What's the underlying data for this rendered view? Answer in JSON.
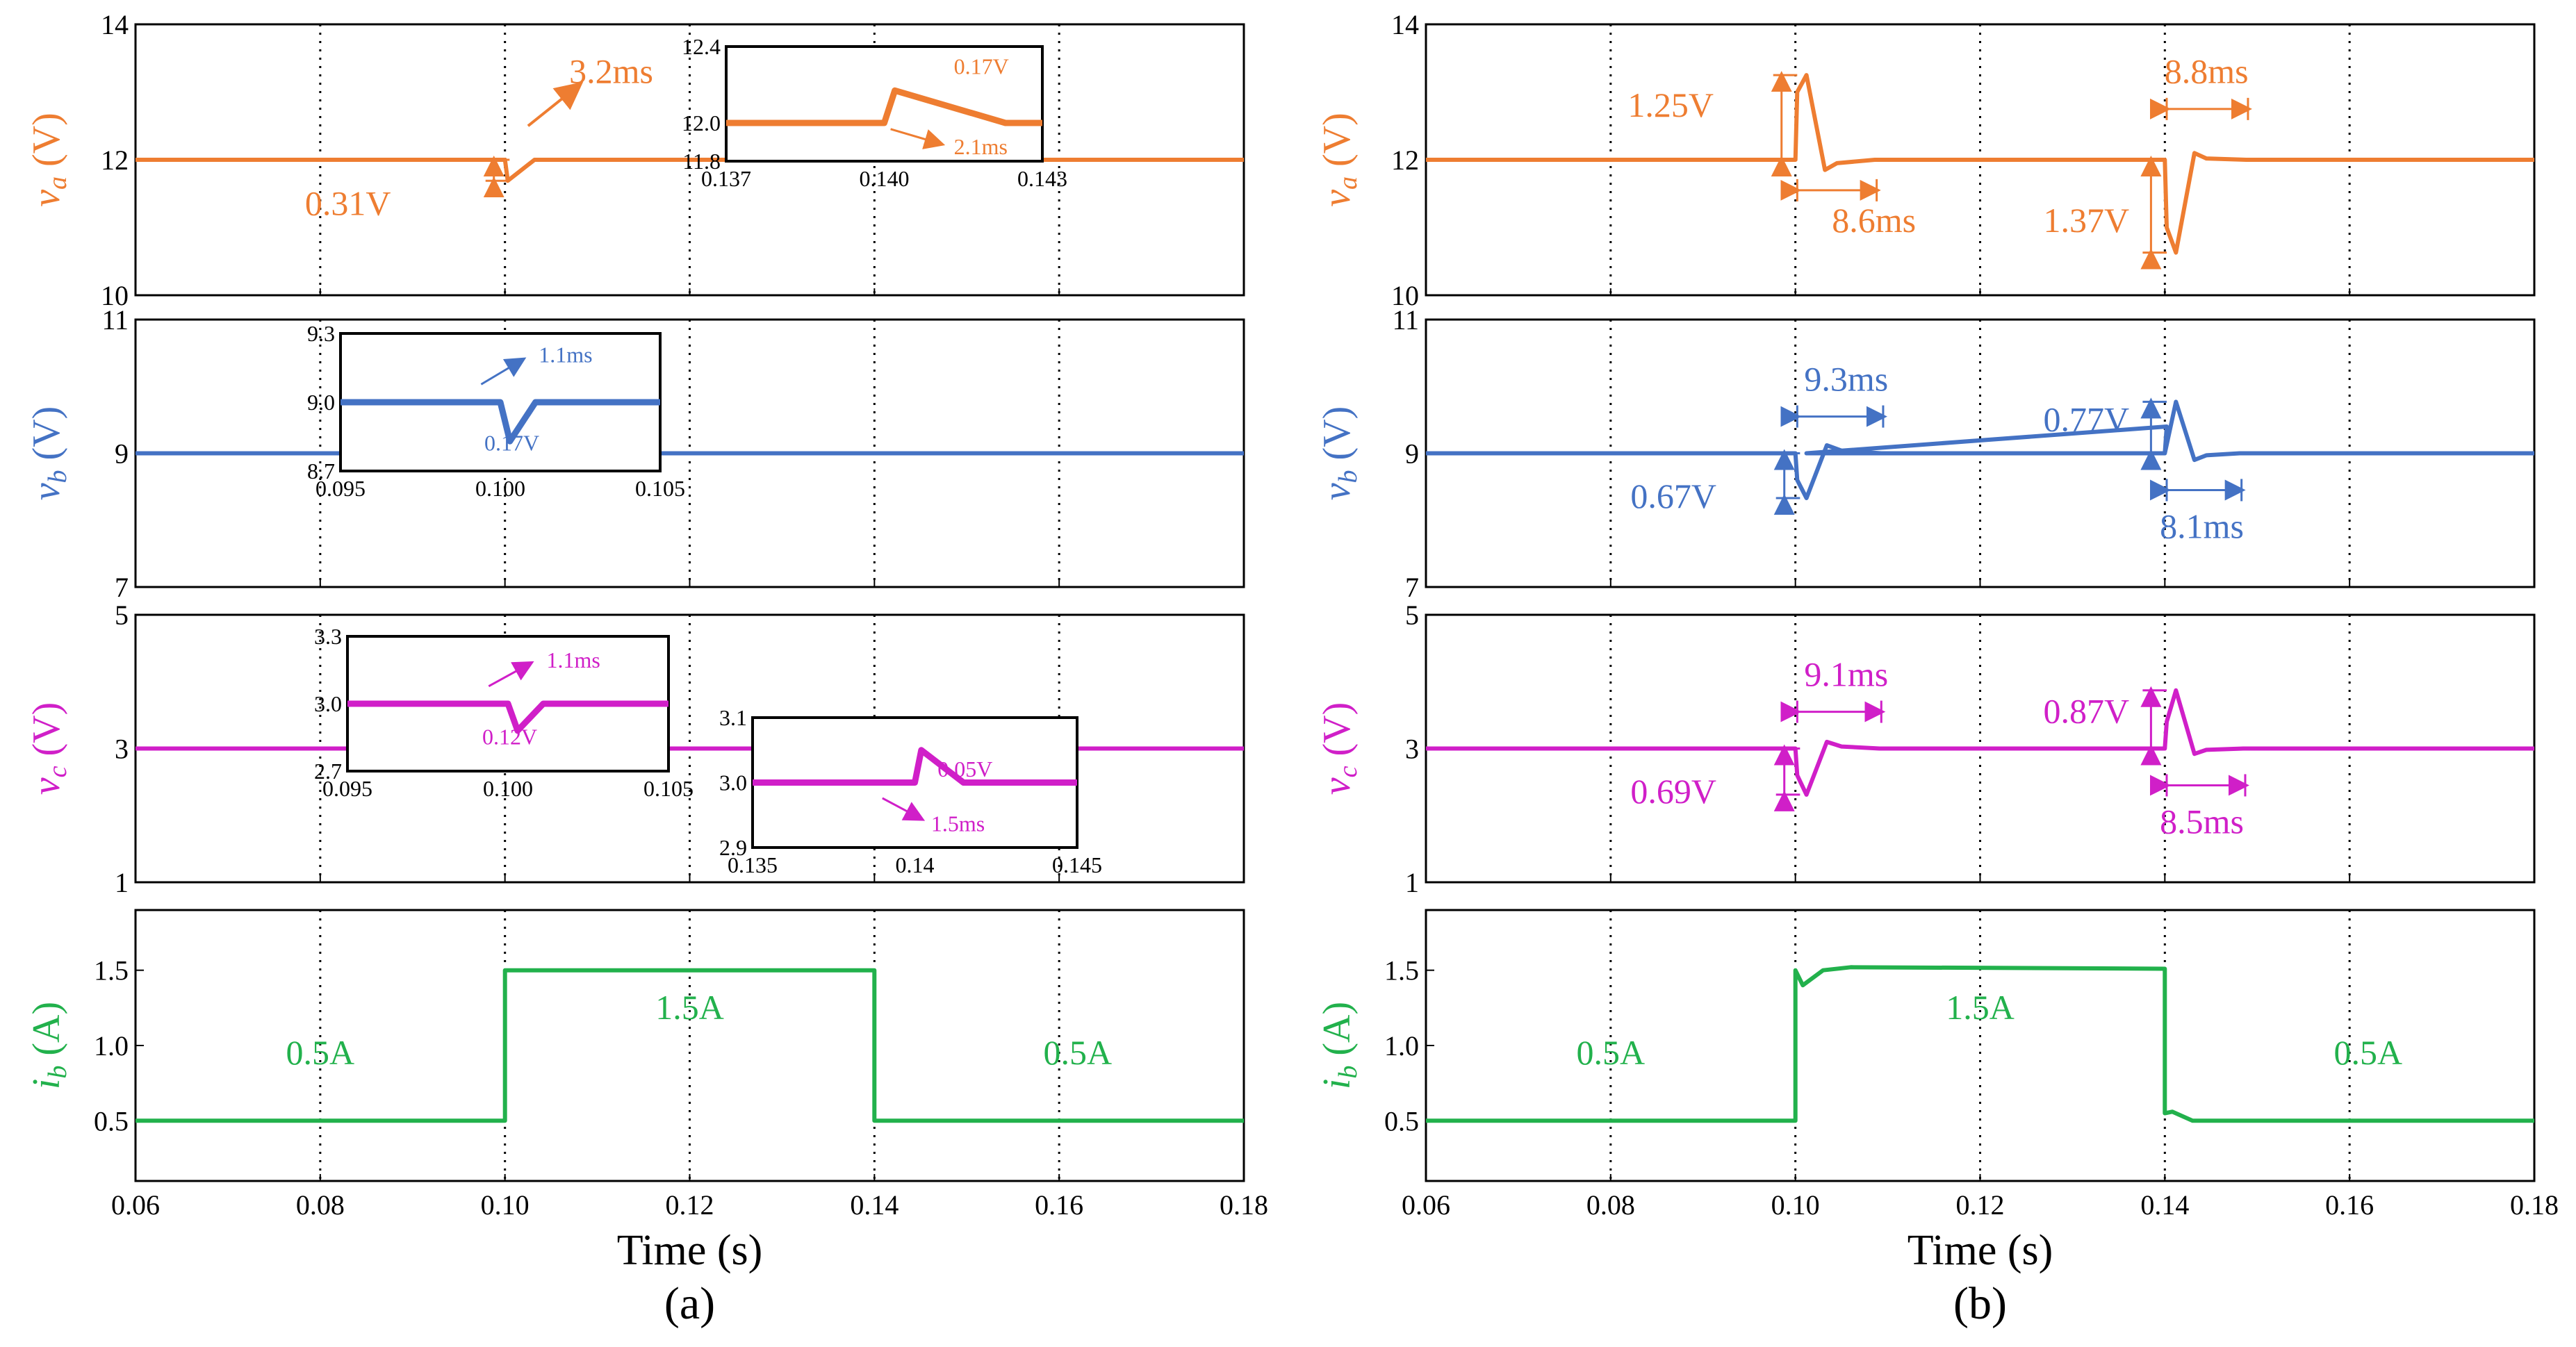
{
  "colors": {
    "va": "#EE7D31",
    "vb": "#4472C4",
    "vc": "#D01FC8",
    "ib": "#22B14C",
    "axis": "#000000"
  },
  "chart_data": [
    {
      "type": "line",
      "panel": "a",
      "panel_label": "(a)",
      "xlabel": "Time (s)",
      "x_ticks": [
        "0.06",
        "0.08",
        "0.10",
        "0.12",
        "0.14",
        "0.16",
        "0.18"
      ],
      "xlim": [
        0.06,
        0.18
      ],
      "subplots": [
        {
          "id": "va",
          "ylabel": "v",
          "ylabel_sub": "a",
          "ylabel_unit": " (V)",
          "ylim": [
            10,
            14
          ],
          "y_ticks": [
            "10",
            "12",
            "14"
          ],
          "series": [
            {
              "name": "va",
              "x": [
                0.06,
                0.1,
                0.1003,
                0.1032,
                0.18
              ],
              "values": [
                12.0,
                12.0,
                11.69,
                12.0,
                12.0
              ]
            }
          ],
          "annotations": [
            "3.2ms",
            "0.31V"
          ],
          "inset": {
            "x_ticks": [
              "0.137",
              "0.140",
              "0.143"
            ],
            "xlim": [
              0.137,
              0.143
            ],
            "y_ticks": [
              "12.4",
              "12.0",
              "11.8"
            ],
            "ylim": [
              11.8,
              12.4
            ],
            "series": {
              "x": [
                0.137,
                0.14,
                0.1402,
                0.1423,
                0.143
              ],
              "values": [
                12.0,
                12.0,
                12.17,
                12.0,
                12.0
              ]
            },
            "annotations": [
              "0.17V",
              "2.1ms"
            ]
          }
        },
        {
          "id": "vb",
          "ylabel": "v",
          "ylabel_sub": "b",
          "ylabel_unit": " (V)",
          "ylim": [
            7,
            11
          ],
          "y_ticks": [
            "7",
            "9",
            "11"
          ],
          "series": [
            {
              "name": "vb",
              "x": [
                0.06,
                0.18
              ],
              "values": [
                9.0,
                9.0
              ]
            }
          ],
          "annotations": [],
          "inset": {
            "x_ticks": [
              "0.095",
              "0.100",
              "0.105"
            ],
            "xlim": [
              0.095,
              0.105
            ],
            "y_ticks": [
              "9.3",
              "9.0",
              "8.7"
            ],
            "ylim": [
              8.7,
              9.3
            ],
            "series": {
              "x": [
                0.095,
                0.1,
                0.1003,
                0.1011,
                0.105
              ],
              "values": [
                9.0,
                9.0,
                8.83,
                9.0,
                9.0
              ]
            },
            "annotations": [
              "1.1ms",
              "0.17V"
            ]
          }
        },
        {
          "id": "vc",
          "ylabel": "v",
          "ylabel_sub": "c",
          "ylabel_unit": " (V)",
          "ylim": [
            1,
            5
          ],
          "y_ticks": [
            "1",
            "3",
            "5"
          ],
          "series": [
            {
              "name": "vc",
              "x": [
                0.06,
                0.18
              ],
              "values": [
                3.0,
                3.0
              ]
            }
          ],
          "annotations": [],
          "insets": [
            {
              "x_ticks": [
                "0.095",
                "0.100",
                "0.105"
              ],
              "xlim": [
                0.095,
                0.105
              ],
              "y_ticks": [
                "3.3",
                "3.0",
                "2.7"
              ],
              "ylim": [
                2.7,
                3.3
              ],
              "series": {
                "x": [
                  0.095,
                  0.1,
                  0.1003,
                  0.1011,
                  0.105
                ],
                "values": [
                  3.0,
                  3.0,
                  2.88,
                  3.0,
                  3.0
                ]
              },
              "annotations": [
                "1.1ms",
                "0.12V"
              ]
            },
            {
              "x_ticks": [
                "0.135",
                "0.14",
                "0.145"
              ],
              "xlim": [
                0.135,
                0.145
              ],
              "y_ticks": [
                "3.1",
                "3.0",
                "2.9"
              ],
              "ylim": [
                2.9,
                3.1
              ],
              "series": {
                "x": [
                  0.135,
                  0.14,
                  0.1402,
                  0.1415,
                  0.145
                ],
                "values": [
                  3.0,
                  3.0,
                  3.05,
                  3.0,
                  3.0
                ]
              },
              "annotations": [
                "0.05V",
                "1.5ms"
              ]
            }
          ]
        },
        {
          "id": "ib",
          "ylabel": "i",
          "ylabel_sub": "b",
          "ylabel_unit": " (A)",
          "ylim": [
            0.1,
            1.9
          ],
          "y_ticks": [
            "0.5",
            "1.0",
            "1.5"
          ],
          "series": [
            {
              "name": "ib",
              "x": [
                0.06,
                0.1,
                0.1,
                0.14,
                0.14,
                0.18
              ],
              "values": [
                0.5,
                0.5,
                1.5,
                1.5,
                0.5,
                0.5
              ]
            }
          ],
          "annotations": [
            "0.5A",
            "1.5A",
            "0.5A"
          ]
        }
      ]
    },
    {
      "type": "line",
      "panel": "b",
      "panel_label": "(b)",
      "xlabel": "Time (s)",
      "x_ticks": [
        "0.06",
        "0.08",
        "0.10",
        "0.12",
        "0.14",
        "0.16",
        "0.18"
      ],
      "xlim": [
        0.06,
        0.18
      ],
      "subplots": [
        {
          "id": "va",
          "ylabel": "v",
          "ylabel_sub": "a",
          "ylabel_unit": " (V)",
          "ylim": [
            10,
            14
          ],
          "y_ticks": [
            "10",
            "12",
            "14"
          ],
          "series": [
            {
              "name": "va",
              "x": [
                0.06,
                0.1,
                0.1002,
                0.1012,
                0.1032,
                0.1045,
                0.1086,
                0.14,
                0.1402,
                0.1412,
                0.1432,
                0.1445,
                0.1488,
                0.18
              ],
              "values": [
                12.0,
                12.0,
                13.0,
                13.25,
                11.85,
                11.95,
                12.0,
                12.0,
                11.0,
                10.63,
                12.1,
                12.02,
                12.0,
                12.0
              ]
            }
          ],
          "annotations": [
            "1.25V",
            "8.6ms",
            "8.8ms",
            "1.37V"
          ]
        },
        {
          "id": "vb",
          "ylabel": "v",
          "ylabel_sub": "b",
          "ylabel_unit": " (V)",
          "ylim": [
            7,
            11
          ],
          "y_ticks": [
            "7",
            "9",
            "11"
          ],
          "series": [
            {
              "name": "vb",
              "x": [
                0.06,
                0.1,
                0.1002,
                0.1012,
                0.1034,
                0.105,
                0.1093,
                0.14,
                0.1402,
                0.1012,
                0.14,
                0.1412,
                0.1432,
                0.1445,
                0.1481,
                0.18
              ],
              "values": [
                9.0,
                9.0,
                8.6,
                8.33,
                9.12,
                9.04,
                9.0,
                9.0,
                9.4,
                9.0,
                9.0,
                9.77,
                8.9,
                8.97,
                9.0,
                9.0
              ]
            }
          ],
          "annotations": [
            "9.3ms",
            "0.77V",
            "0.67V",
            "8.1ms"
          ]
        },
        {
          "id": "vc",
          "ylabel": "v",
          "ylabel_sub": "c",
          "ylabel_unit": " (V)",
          "ylim": [
            1,
            5
          ],
          "y_ticks": [
            "1",
            "3",
            "5"
          ],
          "series": [
            {
              "name": "vc",
              "x": [
                0.06,
                0.1,
                0.1002,
                0.1012,
                0.1034,
                0.105,
                0.1091,
                0.14,
                0.1402,
                0.1412,
                0.1432,
                0.1445,
                0.1485,
                0.18
              ],
              "values": [
                3.0,
                3.0,
                2.6,
                2.31,
                3.1,
                3.03,
                3.0,
                3.0,
                3.4,
                3.87,
                2.92,
                2.98,
                3.0,
                3.0
              ]
            }
          ],
          "annotations": [
            "9.1ms",
            "0.87V",
            "0.69V",
            "8.5ms"
          ]
        },
        {
          "id": "ib",
          "ylabel": "i",
          "ylabel_sub": "b",
          "ylabel_unit": " (A)",
          "ylim": [
            0.1,
            1.9
          ],
          "y_ticks": [
            "0.5",
            "1.0",
            "1.5"
          ],
          "series": [
            {
              "name": "ib",
              "x": [
                0.06,
                0.1,
                0.1,
                0.1008,
                0.103,
                0.106,
                0.14,
                0.14,
                0.1408,
                0.143,
                0.146,
                0.18
              ],
              "values": [
                0.5,
                0.5,
                1.5,
                1.4,
                1.5,
                1.52,
                1.51,
                0.55,
                0.56,
                0.5,
                0.5,
                0.5
              ]
            }
          ],
          "annotations": [
            "0.5A",
            "1.5A",
            "0.5A"
          ]
        }
      ]
    }
  ]
}
